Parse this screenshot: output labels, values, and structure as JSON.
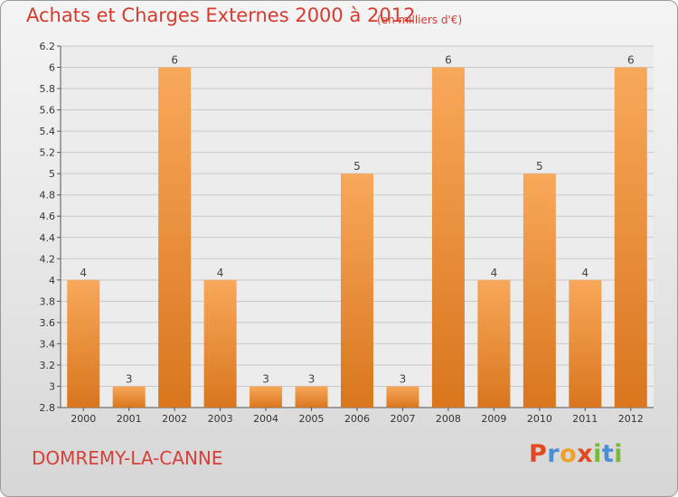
{
  "header": {
    "title": "Achats et Charges Externes 2000 à 2012",
    "unit": "(en milliers d'€)"
  },
  "footer": {
    "place": "DOMREMY-LA-CANNE",
    "logo": "Proxiti",
    "logo_colors": [
      "#e04a1f",
      "#4a8fd6",
      "#f0a12a",
      "#e04a1f",
      "#7ab83a",
      "#4a8fd6",
      "#7ab83a"
    ]
  },
  "colors": {
    "title": "#d63b2e",
    "bar_light": "#f8a85a",
    "bar_dark": "#d9761e",
    "grid": "#c9c9c9",
    "axis": "#555555",
    "tick_text": "#333333"
  },
  "chart_data": {
    "type": "bar",
    "categories": [
      "2000",
      "2001",
      "2002",
      "2003",
      "2004",
      "2005",
      "2006",
      "2007",
      "2008",
      "2009",
      "2010",
      "2011",
      "2012"
    ],
    "values": [
      4,
      3,
      6,
      4,
      3,
      3,
      5,
      3,
      6,
      4,
      5,
      4,
      6
    ],
    "data_labels": [
      "4",
      "3",
      "6",
      "4",
      "3",
      "3",
      "5",
      "3",
      "6",
      "4",
      "5",
      "4",
      "6"
    ],
    "title": "Achats et Charges Externes 2000 à 2012",
    "ylim": [
      2.8,
      6.2
    ],
    "yticks": [
      "2.8",
      "3",
      "3.2",
      "3.4",
      "3.6",
      "3.8",
      "4",
      "4.2",
      "4.4",
      "4.6",
      "4.8",
      "5",
      "5.2",
      "5.4",
      "5.6",
      "5.8",
      "6",
      "6.2"
    ],
    "grid": true
  }
}
